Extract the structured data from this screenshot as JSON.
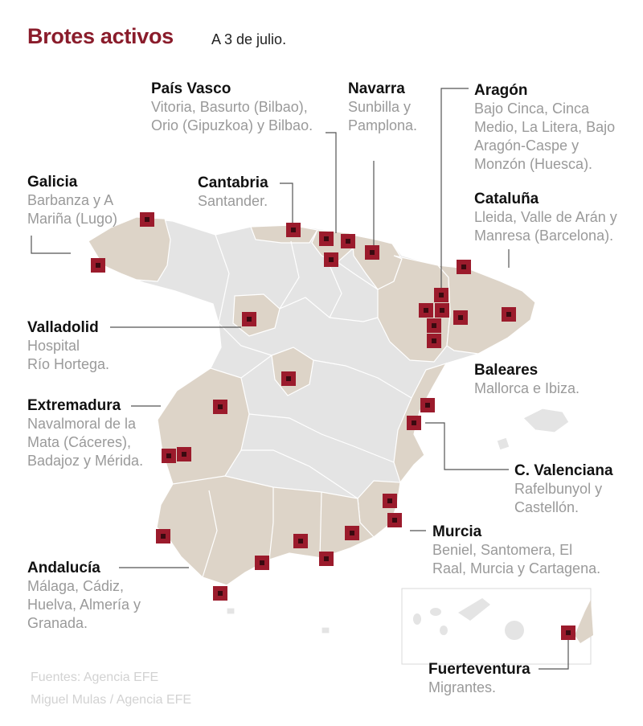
{
  "title": "Brotes activos",
  "date": "A 3 de julio.",
  "colors": {
    "accent": "#8a1c2b",
    "marker": "#9b1b2c",
    "affected_region": "#ddd4c8",
    "other_region": "#e4e4e4",
    "border": "#ffffff"
  },
  "labels": [
    {
      "region": "Galicia",
      "detail": "Barbanza y A\nMariña (Lugo)"
    },
    {
      "region": "País Vasco",
      "detail": "Vitoria, Basurto (Bilbao),\nOrio (Gipuzkoa) y Bilbao."
    },
    {
      "region": "Navarra",
      "detail": "Sunbilla y\nPamplona."
    },
    {
      "region": "Aragón",
      "detail": "Bajo Cinca, Cinca\nMedio, La Litera,  Bajo\nAragón-Caspe y\nMonzón (Huesca)."
    },
    {
      "region": "Cantabria",
      "detail": "Santander."
    },
    {
      "region": "Cataluña",
      "detail": "Lleida, Valle de Arán y\nManresa (Barcelona)."
    },
    {
      "region": "Valladolid",
      "detail": "Hospital\nRío Hortega."
    },
    {
      "region": "Baleares",
      "detail": "Mallorca e Ibiza."
    },
    {
      "region": "Extremadura",
      "detail": "Navalmoral de la\nMata (Cáceres),\nBadajoz y Mérida."
    },
    {
      "region": "C. Valenciana",
      "detail": "Rafelbunyol y\nCastellón."
    },
    {
      "region": "Murcia",
      "detail": "Beniel, Santomera, El\nRaal, Murcia y Cartagena."
    },
    {
      "region": "Andalucía",
      "detail": "Málaga, Cádiz,\nHuelva, Almería y\nGranada."
    },
    {
      "region": "Fuerteventura",
      "detail": "Migrantes."
    }
  ],
  "sources": [
    "Fuentes: Agencia EFE",
    "Miguel Mulas / Agencia EFE"
  ]
}
